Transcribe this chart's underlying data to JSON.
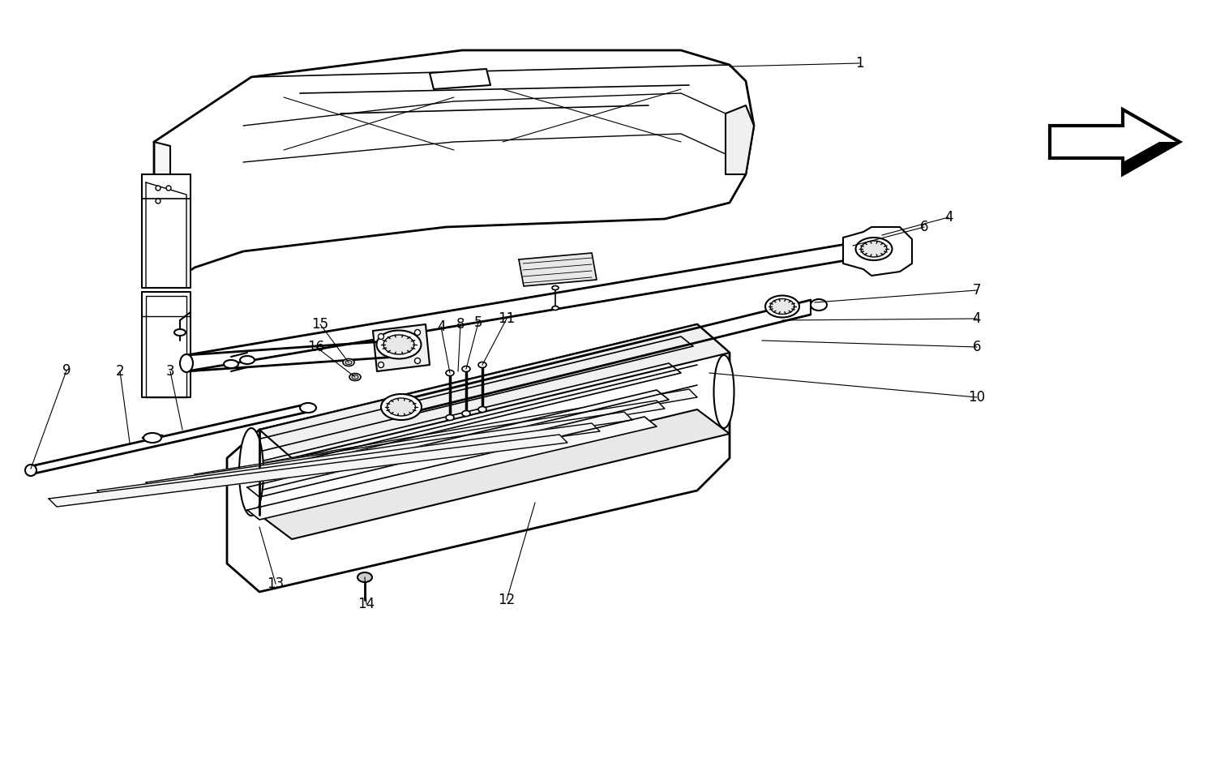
{
  "background_color": "#ffffff",
  "line_color": "#000000",
  "fig_width": 15.0,
  "fig_height": 9.46,
  "dpi": 100
}
